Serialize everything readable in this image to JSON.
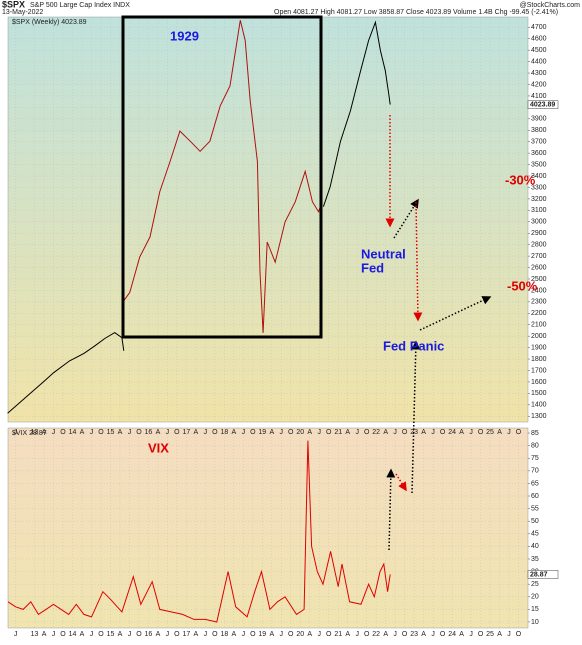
{
  "header": {
    "symbol": "$SPX",
    "name": "S&P 500 Large Cap Index  INDX",
    "date": "13-May-2022",
    "quote": "Open 4081.27  High 4081.27  Low 3858.87  Close 4023.89  Volume 1.4B  Chg -99.45 (-2.41%)",
    "source": "@StockCharts.com"
  },
  "chart_data": [
    {
      "type": "line",
      "grid": true,
      "last_value": 4023.89,
      "xlim": [
        2012.3,
        2026.0
      ],
      "ylim": [
        1250,
        4790
      ],
      "xticks": [
        {
          "value": 2012.5,
          "label": "J"
        },
        {
          "value": 2013,
          "label": "13"
        },
        {
          "value": 2013.25,
          "label": "A"
        },
        {
          "value": 2013.5,
          "label": "J"
        },
        {
          "value": 2013.75,
          "label": "O"
        },
        {
          "value": 2014,
          "label": "14"
        },
        {
          "value": 2014.25,
          "label": "A"
        },
        {
          "value": 2014.5,
          "label": "J"
        },
        {
          "value": 2014.75,
          "label": "O"
        },
        {
          "value": 2015,
          "label": "15"
        },
        {
          "value": 2015.25,
          "label": "A"
        },
        {
          "value": 2015.5,
          "label": "J"
        },
        {
          "value": 2015.75,
          "label": "O"
        },
        {
          "value": 2016,
          "label": "16"
        },
        {
          "value": 2016.25,
          "label": "A"
        },
        {
          "value": 2016.5,
          "label": "J"
        },
        {
          "value": 2016.75,
          "label": "O"
        },
        {
          "value": 2017,
          "label": "17"
        },
        {
          "value": 2017.25,
          "label": "A"
        },
        {
          "value": 2017.5,
          "label": "J"
        },
        {
          "value": 2017.75,
          "label": "O"
        },
        {
          "value": 2018,
          "label": "18"
        },
        {
          "value": 2018.25,
          "label": "A"
        },
        {
          "value": 2018.5,
          "label": "J"
        },
        {
          "value": 2018.75,
          "label": "O"
        },
        {
          "value": 2019,
          "label": "19"
        },
        {
          "value": 2019.25,
          "label": "A"
        },
        {
          "value": 2019.5,
          "label": "J"
        },
        {
          "value": 2019.75,
          "label": "O"
        },
        {
          "value": 2020,
          "label": "20"
        },
        {
          "value": 2020.25,
          "label": "A"
        },
        {
          "value": 2020.5,
          "label": "J"
        },
        {
          "value": 2020.75,
          "label": "O"
        },
        {
          "value": 2021,
          "label": "21"
        },
        {
          "value": 2021.25,
          "label": "A"
        },
        {
          "value": 2021.5,
          "label": "J"
        },
        {
          "value": 2021.75,
          "label": "O"
        },
        {
          "value": 2022,
          "label": "22"
        },
        {
          "value": 2022.25,
          "label": "A"
        },
        {
          "value": 2022.5,
          "label": "J"
        },
        {
          "value": 2022.75,
          "label": "O"
        },
        {
          "value": 2023,
          "label": "23"
        },
        {
          "value": 2023.25,
          "label": "A"
        },
        {
          "value": 2023.5,
          "label": "J"
        },
        {
          "value": 2023.75,
          "label": "O"
        },
        {
          "value": 2024,
          "label": "24"
        },
        {
          "value": 2024.25,
          "label": "A"
        },
        {
          "value": 2024.5,
          "label": "J"
        },
        {
          "value": 2024.75,
          "label": "O"
        },
        {
          "value": 2025,
          "label": "25"
        },
        {
          "value": 2025.25,
          "label": "A"
        },
        {
          "value": 2025.5,
          "label": "J"
        },
        {
          "value": 2025.75,
          "label": "O"
        }
      ],
      "yticks": [
        1300,
        1400,
        1500,
        1600,
        1700,
        1800,
        1900,
        2000,
        2100,
        2200,
        2300,
        2400,
        2500,
        2600,
        2700,
        2800,
        2900,
        3000,
        3100,
        3200,
        3300,
        3400,
        3500,
        3600,
        3700,
        3800,
        3900,
        4000,
        4100,
        4200,
        4300,
        4400,
        4500,
        4600,
        4700
      ],
      "annotations": [
        "-30%",
        "-50%",
        "Neutral",
        "Fed",
        "Fed Panic"
      ],
      "series": [
        {
          "name": "$SPX (Weekly) 4023.89",
          "color": "#000000",
          "x": [
            2012.29,
            2012.74,
            2013.26,
            2013.5,
            2013.92,
            2014.3,
            2014.59,
            2014.85,
            2015.11,
            2015.3,
            2015.35,
            2015.4,
            2020.61,
            2020.79,
            2021.06,
            2021.32,
            2021.59,
            2021.8,
            2021.98,
            2022.11,
            2022.24,
            2022.33,
            2022.37
          ],
          "values": [
            1326,
            1458,
            1608,
            1680,
            1784,
            1850,
            1916,
            1980,
            2031,
            1987,
            1872,
            null,
            3132,
            3308,
            3704,
            3969,
            4321,
            4585,
            4744,
            4497,
            4321,
            4120,
            4023.89
          ]
        },
        {
          "name": "1929",
          "color": "#b01010",
          "x": [
            2015.32,
            2015.51,
            2015.77,
            2016.04,
            2016.3,
            2016.57,
            2016.83,
            2017.1,
            2017.36,
            2017.62,
            2017.89,
            2018.15,
            2018.42,
            2018.55,
            2018.68,
            2018.87,
            2018.94,
            2019.02,
            2019.13,
            2019.34,
            2019.6,
            2019.87,
            2020.13,
            2020.32,
            2020.48,
            2020.58
          ],
          "values": [
            2295,
            2383,
            2691,
            2868,
            3264,
            3528,
            3793,
            3704,
            3616,
            3704,
            4013,
            4189,
            4762,
            4585,
            4057,
            3528,
            2559,
            2030,
            2823,
            2647,
            3000,
            3176,
            3440,
            3176,
            3088,
            3176
          ]
        }
      ]
    },
    {
      "type": "line",
      "grid": true,
      "last_value": 28.87,
      "xlim": [
        2012.3,
        2026.0
      ],
      "ylim": [
        7.6,
        87
      ],
      "yticks": [
        10,
        15,
        20,
        25,
        30,
        35,
        40,
        45,
        50,
        55,
        60,
        65,
        70,
        75,
        80,
        85
      ],
      "annotations": [
        "VIX"
      ],
      "series": [
        {
          "name": "$VIX 28.87",
          "color": "#e00000",
          "x": [
            2012.3,
            2012.5,
            2012.7,
            2012.9,
            2013.1,
            2013.3,
            2013.5,
            2013.7,
            2013.9,
            2014.1,
            2014.3,
            2014.5,
            2014.8,
            2015.0,
            2015.3,
            2015.6,
            2015.8,
            2016.1,
            2016.3,
            2016.6,
            2016.9,
            2017.2,
            2017.5,
            2017.8,
            2018.1,
            2018.3,
            2018.6,
            2018.8,
            2018.98,
            2019.2,
            2019.4,
            2019.6,
            2019.9,
            2020.1,
            2020.2,
            2020.3,
            2020.45,
            2020.6,
            2020.8,
            2021.0,
            2021.1,
            2021.3,
            2021.6,
            2021.8,
            2021.95,
            2022.1,
            2022.2,
            2022.3,
            2022.37
          ],
          "values": [
            18,
            16,
            15,
            18,
            13,
            15,
            17,
            15,
            13,
            17,
            13,
            12,
            22,
            19,
            14,
            28,
            17,
            26,
            15,
            14,
            13,
            11,
            11,
            10,
            30,
            16,
            12,
            22,
            30,
            15,
            18,
            20,
            13,
            15,
            82,
            40,
            30,
            25,
            38,
            24,
            33,
            18,
            17,
            25,
            20,
            30,
            33,
            22,
            28.87
          ]
        }
      ]
    }
  ]
}
